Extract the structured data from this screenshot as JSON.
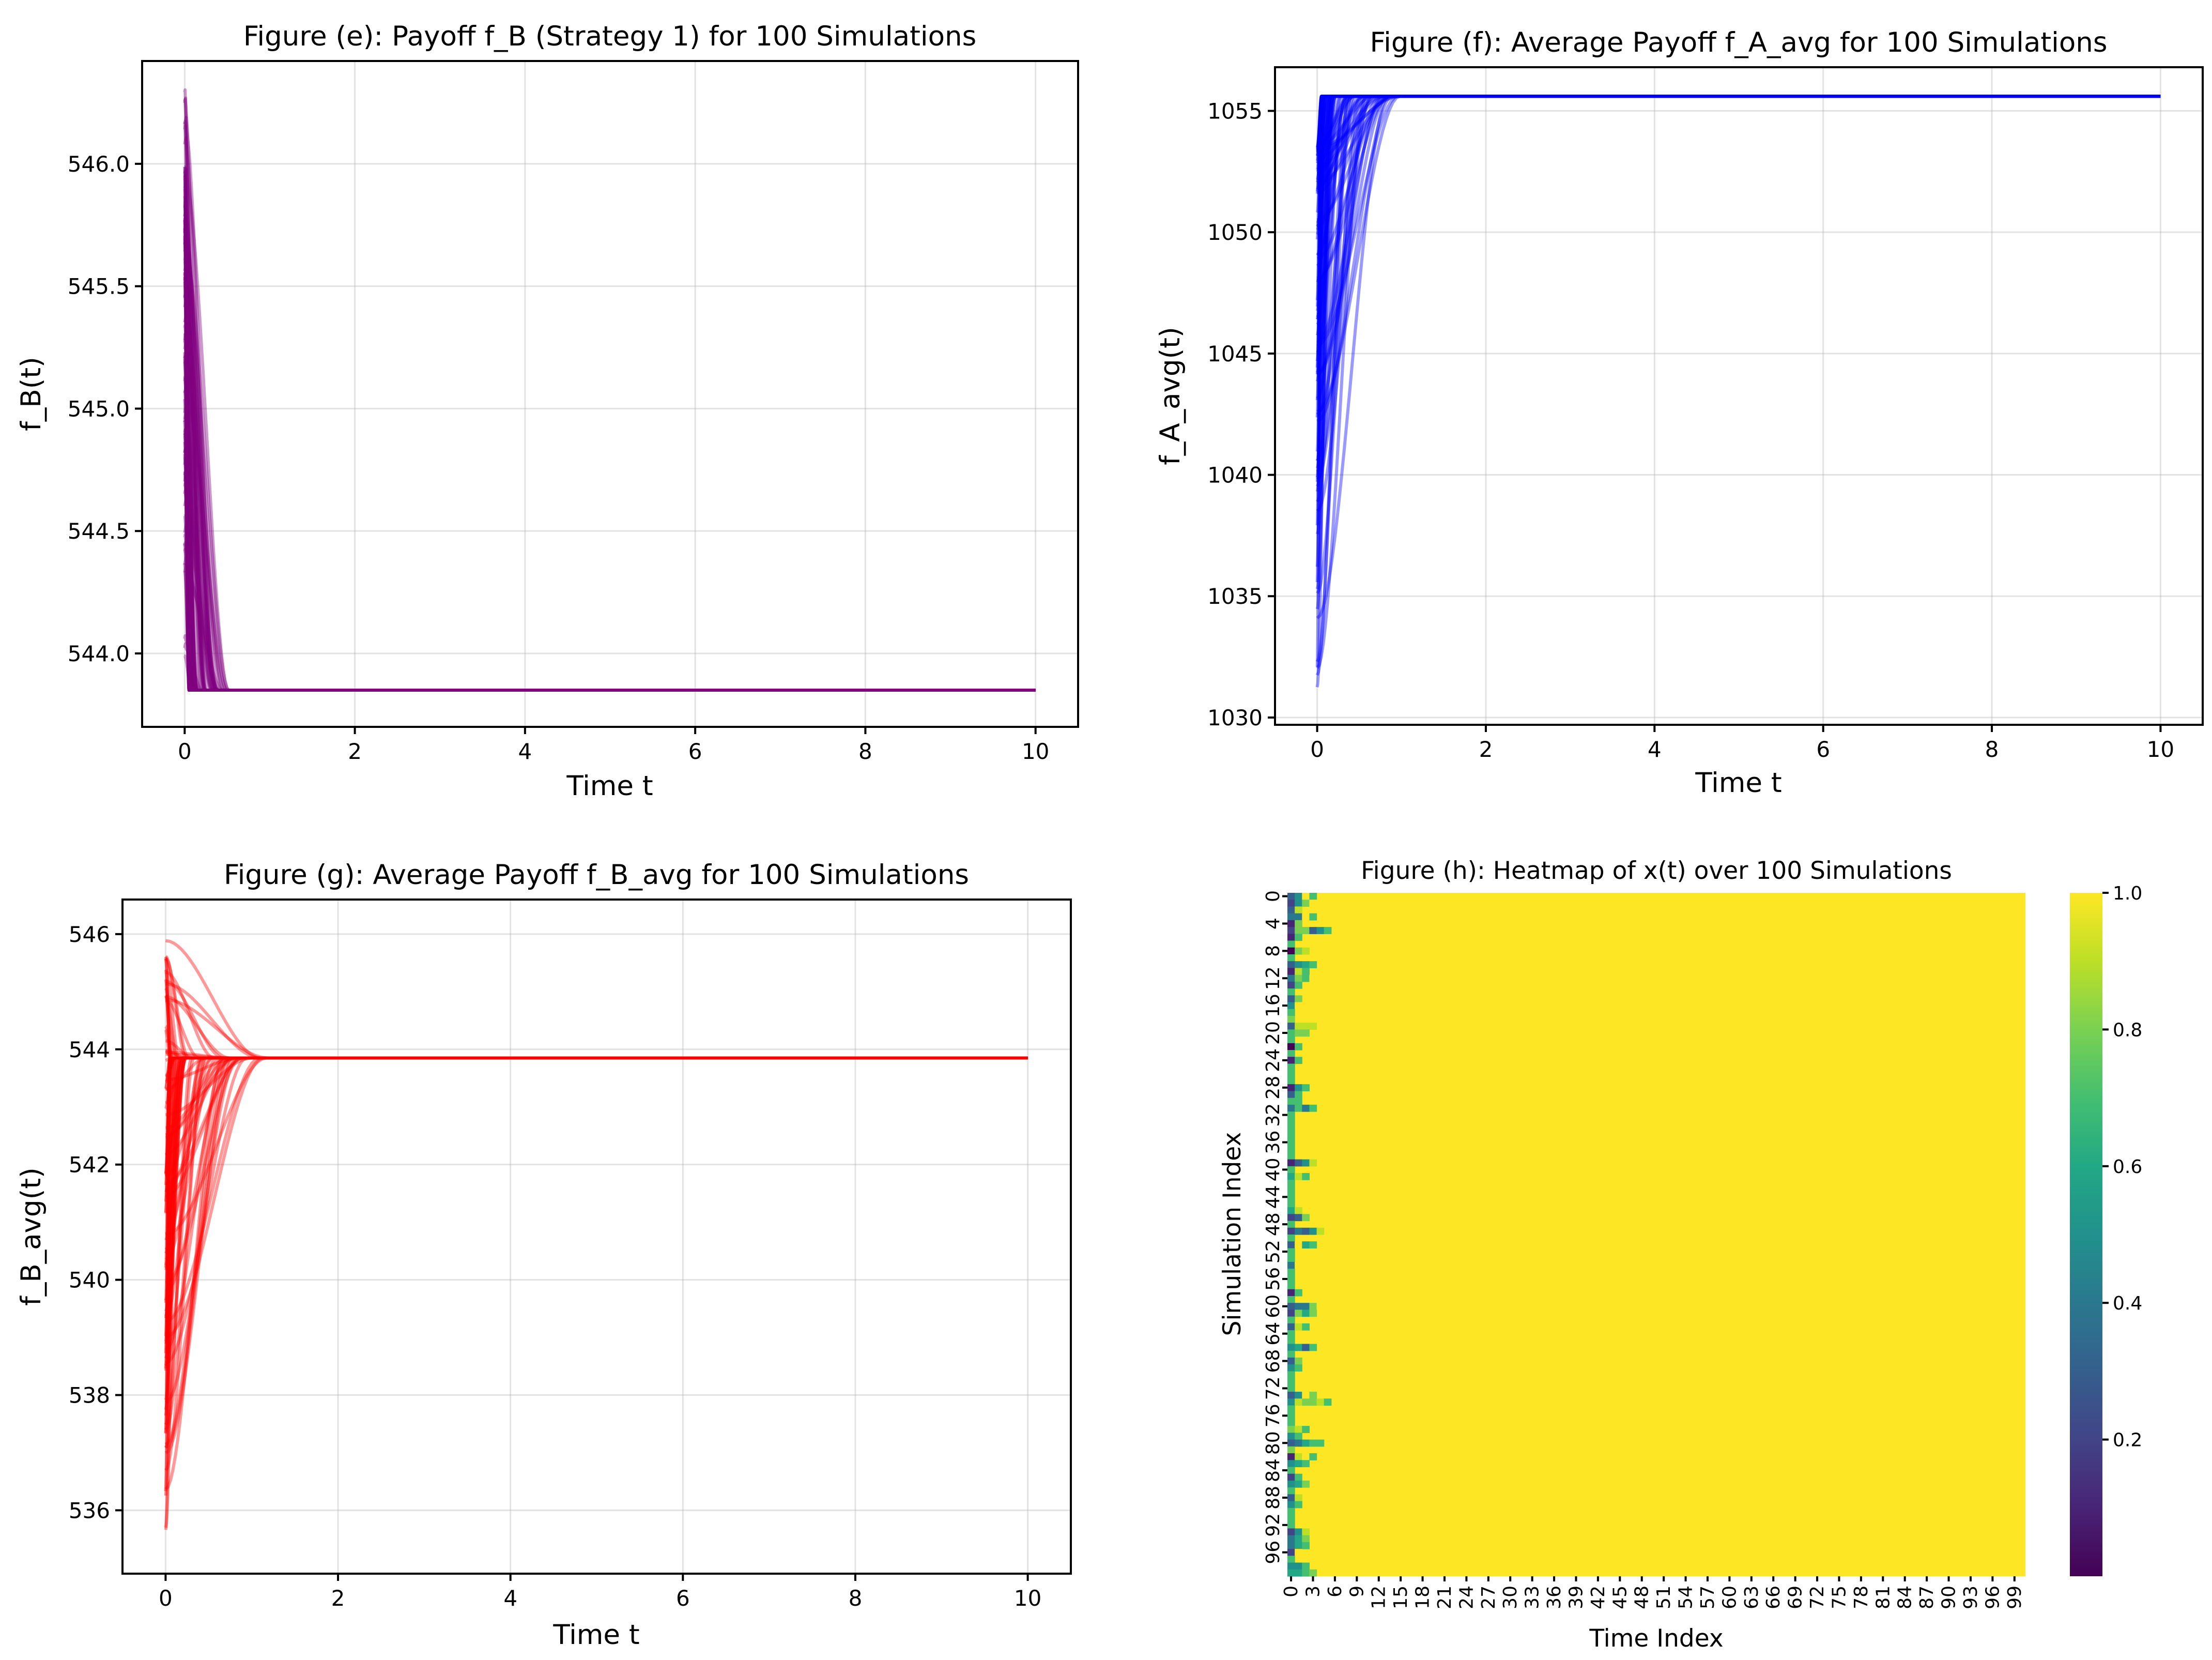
{
  "chart_data": [
    {
      "id": "e",
      "type": "line",
      "title": "Figure (e): Payoff f_B (Strategy 1) for 100 Simulations",
      "xlabel": "Time t",
      "ylabel": "f_B(t)",
      "color": "#800080",
      "alpha": 0.4,
      "xlim": [
        -0.5,
        10.5
      ],
      "ylim": [
        543.7,
        546.42
      ],
      "xticks": [
        0,
        2,
        4,
        6,
        8,
        10
      ],
      "yticks": [
        544.0,
        544.5,
        545.0,
        545.5,
        546.0
      ],
      "ytick_labels": [
        "544.0",
        "544.5",
        "545.0",
        "545.5",
        "546.0"
      ],
      "grid": true,
      "n_series": 100,
      "series_summary": {
        "steady_value": 543.85,
        "start_min": 543.9,
        "start_max": 546.3,
        "settle_time_min": 0.05,
        "settle_time_max": 0.52
      }
    },
    {
      "id": "f",
      "type": "line",
      "title": "Figure (f): Average Payoff f_A_avg for 100 Simulations",
      "xlabel": "Time t",
      "ylabel": "f_A_avg(t)",
      "color": "#0000ff",
      "alpha": 0.4,
      "xlim": [
        -0.5,
        10.5
      ],
      "ylim": [
        1029.7,
        1056.8
      ],
      "xticks": [
        0,
        2,
        4,
        6,
        8,
        10
      ],
      "yticks": [
        1030,
        1035,
        1040,
        1045,
        1050,
        1055
      ],
      "ytick_labels": [
        "1030",
        "1035",
        "1040",
        "1045",
        "1050",
        "1055"
      ],
      "grid": true,
      "n_series": 100,
      "series_summary": {
        "steady_value": 1055.6,
        "start_min": 1030.9,
        "start_max": 1053.5,
        "settle_time_min": 0.05,
        "settle_time_max": 1.0
      }
    },
    {
      "id": "g",
      "type": "line",
      "title": "Figure (g): Average Payoff f_B_avg for 100 Simulations",
      "xlabel": "Time t",
      "ylabel": "f_B_avg(t)",
      "color": "#ff0000",
      "alpha": 0.4,
      "xlim": [
        -0.5,
        10.5
      ],
      "ylim": [
        534.9,
        546.6
      ],
      "xticks": [
        0,
        2,
        4,
        6,
        8,
        10
      ],
      "yticks": [
        536,
        538,
        540,
        542,
        544,
        546
      ],
      "ytick_labels": [
        "536",
        "538",
        "540",
        "542",
        "544",
        "546"
      ],
      "grid": true,
      "n_series": 100,
      "series_summary": {
        "steady_value": 543.85,
        "start_min": 535.6,
        "start_max": 546.0,
        "settle_time_min": 0.05,
        "settle_time_max": 1.2
      }
    },
    {
      "id": "h",
      "type": "heatmap",
      "title": "Figure (h): Heatmap of x(t) over 100 Simulations",
      "xlabel": "Time Index",
      "ylabel": "Simulation Index",
      "n_rows": 100,
      "n_cols": 101,
      "colormap": "viridis",
      "value_range": [
        0.0,
        1.0
      ],
      "x_tick_labels": [
        "0",
        "3",
        "6",
        "9",
        "12",
        "15",
        "18",
        "21",
        "24",
        "27",
        "30",
        "33",
        "36",
        "39",
        "42",
        "45",
        "48",
        "51",
        "54",
        "57",
        "60",
        "63",
        "66",
        "69",
        "72",
        "75",
        "78",
        "81",
        "84",
        "87",
        "90",
        "93",
        "96",
        "99"
      ],
      "y_tick_labels": [
        "0",
        "4",
        "8",
        "12",
        "16",
        "20",
        "24",
        "28",
        "32",
        "36",
        "40",
        "44",
        "48",
        "52",
        "56",
        "60",
        "64",
        "68",
        "72",
        "76",
        "80",
        "84",
        "88",
        "92",
        "96"
      ],
      "colorbar_ticks": [
        0.2,
        0.4,
        0.6,
        0.8,
        1.0
      ],
      "colorbar_tick_labels": [
        "0.2",
        "0.4",
        "0.6",
        "0.8",
        "1.0"
      ],
      "description": "All cells equal 1.0 (yellow) except the first 1-6 time indices, where values vary between about 0 and 1 depending on the simulation."
    }
  ]
}
